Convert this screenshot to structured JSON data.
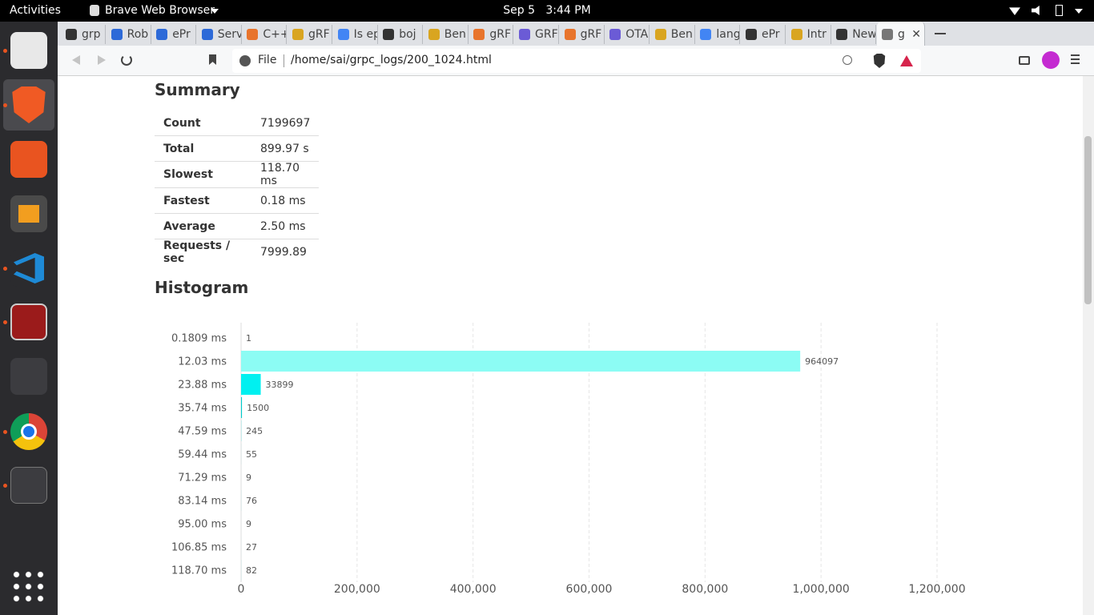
{
  "top_bar": {
    "activities": "Activities",
    "app_name": "Brave Web Browser",
    "clock": "Sep 5   3:44 PM"
  },
  "tabs": [
    "grp",
    "Rob",
    "ePr",
    "Serv",
    "C++",
    "gRF",
    "Is ep",
    "boj",
    "Ben",
    "gRF",
    "GRF",
    "gRF",
    "OTA",
    "Ben",
    "lang",
    "ePr",
    "Intr",
    "New",
    "g"
  ],
  "address_bar": {
    "scheme": "File",
    "url": "/home/sai/grpc_logs/200_1024.html"
  },
  "summary": {
    "heading": "Summary",
    "rows": [
      [
        "Count",
        "7199697"
      ],
      [
        "Total",
        "899.97 s"
      ],
      [
        "Slowest",
        "118.70 ms"
      ],
      [
        "Fastest",
        "0.18 ms"
      ],
      [
        "Average",
        "2.50 ms"
      ],
      [
        "Requests / sec",
        "7999.89"
      ]
    ]
  },
  "histogram_heading": "Histogram",
  "chart_data": {
    "type": "bar",
    "orientation": "horizontal",
    "categories": [
      "0.1809 ms",
      "12.03 ms",
      "23.88 ms",
      "35.74 ms",
      "47.59 ms",
      "59.44 ms",
      "71.29 ms",
      "83.14 ms",
      "95.00 ms",
      "106.85 ms",
      "118.70 ms"
    ],
    "values": [
      1,
      964097,
      33899,
      1500,
      245,
      55,
      9,
      76,
      9,
      27,
      82
    ],
    "colors": [
      "#8cfcf4",
      "#8cfcf4",
      "#00f0f0",
      "#00cccc",
      "#00cccc",
      "#00cccc",
      "#00cccc",
      "#00cccc",
      "#00cccc",
      "#00cccc",
      "#00cccc"
    ],
    "xlim": [
      0,
      1200000
    ],
    "xticks": [
      0,
      {
        "value": 200000,
        "label": "200,000"
      },
      {
        "value": 400000,
        "label": "400,000"
      },
      {
        "value": 600000,
        "label": "600,000"
      },
      {
        "value": 800000,
        "label": "800,000"
      },
      {
        "value": 1000000,
        "label": "1,000,000"
      },
      {
        "value": 1200000,
        "label": "1,200,000"
      }
    ],
    "grid": true
  }
}
